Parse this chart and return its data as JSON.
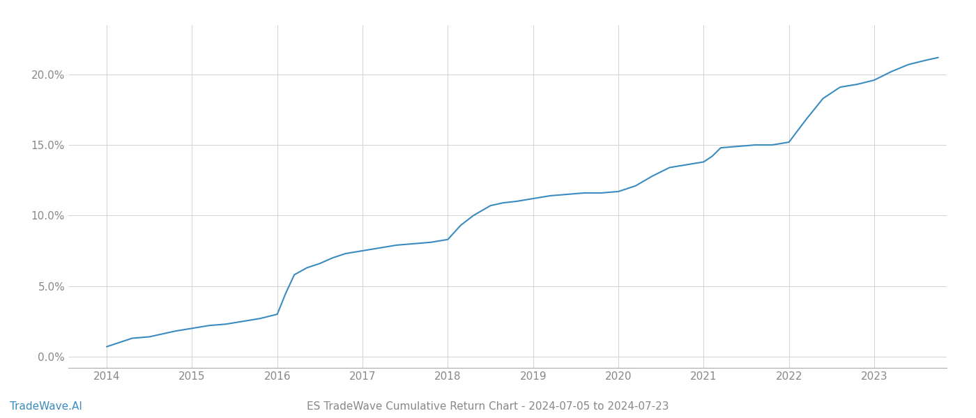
{
  "title": "ES TradeWave Cumulative Return Chart - 2024-07-05 to 2024-07-23",
  "watermark": "TradeWave.AI",
  "line_color": "#3a8bbf",
  "background_color": "#ffffff",
  "grid_color": "#cccccc",
  "x_years": [
    2014,
    2015,
    2016,
    2017,
    2018,
    2019,
    2020,
    2021,
    2022,
    2023
  ],
  "x_values": [
    2014.0,
    2014.15,
    2014.3,
    2014.5,
    2014.65,
    2014.8,
    2015.0,
    2015.2,
    2015.4,
    2015.6,
    2015.8,
    2016.0,
    2016.1,
    2016.2,
    2016.35,
    2016.5,
    2016.65,
    2016.8,
    2017.0,
    2017.2,
    2017.4,
    2017.6,
    2017.8,
    2018.0,
    2018.15,
    2018.3,
    2018.5,
    2018.65,
    2018.8,
    2019.0,
    2019.2,
    2019.4,
    2019.6,
    2019.8,
    2020.0,
    2020.2,
    2020.4,
    2020.6,
    2020.8,
    2021.0,
    2021.1,
    2021.2,
    2021.4,
    2021.6,
    2021.8,
    2022.0,
    2022.2,
    2022.4,
    2022.6,
    2022.8,
    2023.0,
    2023.2,
    2023.4,
    2023.6,
    2023.75
  ],
  "y_values": [
    0.007,
    0.01,
    0.013,
    0.014,
    0.016,
    0.018,
    0.02,
    0.022,
    0.023,
    0.025,
    0.027,
    0.03,
    0.045,
    0.058,
    0.063,
    0.066,
    0.07,
    0.073,
    0.075,
    0.077,
    0.079,
    0.08,
    0.081,
    0.083,
    0.093,
    0.1,
    0.107,
    0.109,
    0.11,
    0.112,
    0.114,
    0.115,
    0.116,
    0.116,
    0.117,
    0.121,
    0.128,
    0.134,
    0.136,
    0.138,
    0.142,
    0.148,
    0.149,
    0.15,
    0.15,
    0.152,
    0.168,
    0.183,
    0.191,
    0.193,
    0.196,
    0.202,
    0.207,
    0.21,
    0.212
  ],
  "ylim": [
    -0.008,
    0.235
  ],
  "xlim": [
    2013.55,
    2023.85
  ],
  "yticks": [
    0.0,
    0.05,
    0.1,
    0.15,
    0.2
  ],
  "ytick_labels": [
    "0.0%",
    "5.0%",
    "10.0%",
    "15.0%",
    "20.0%"
  ],
  "line_width": 1.5,
  "title_fontsize": 11,
  "tick_fontsize": 11,
  "watermark_fontsize": 11,
  "axis_color": "#aaaaaa",
  "tick_color": "#888888"
}
